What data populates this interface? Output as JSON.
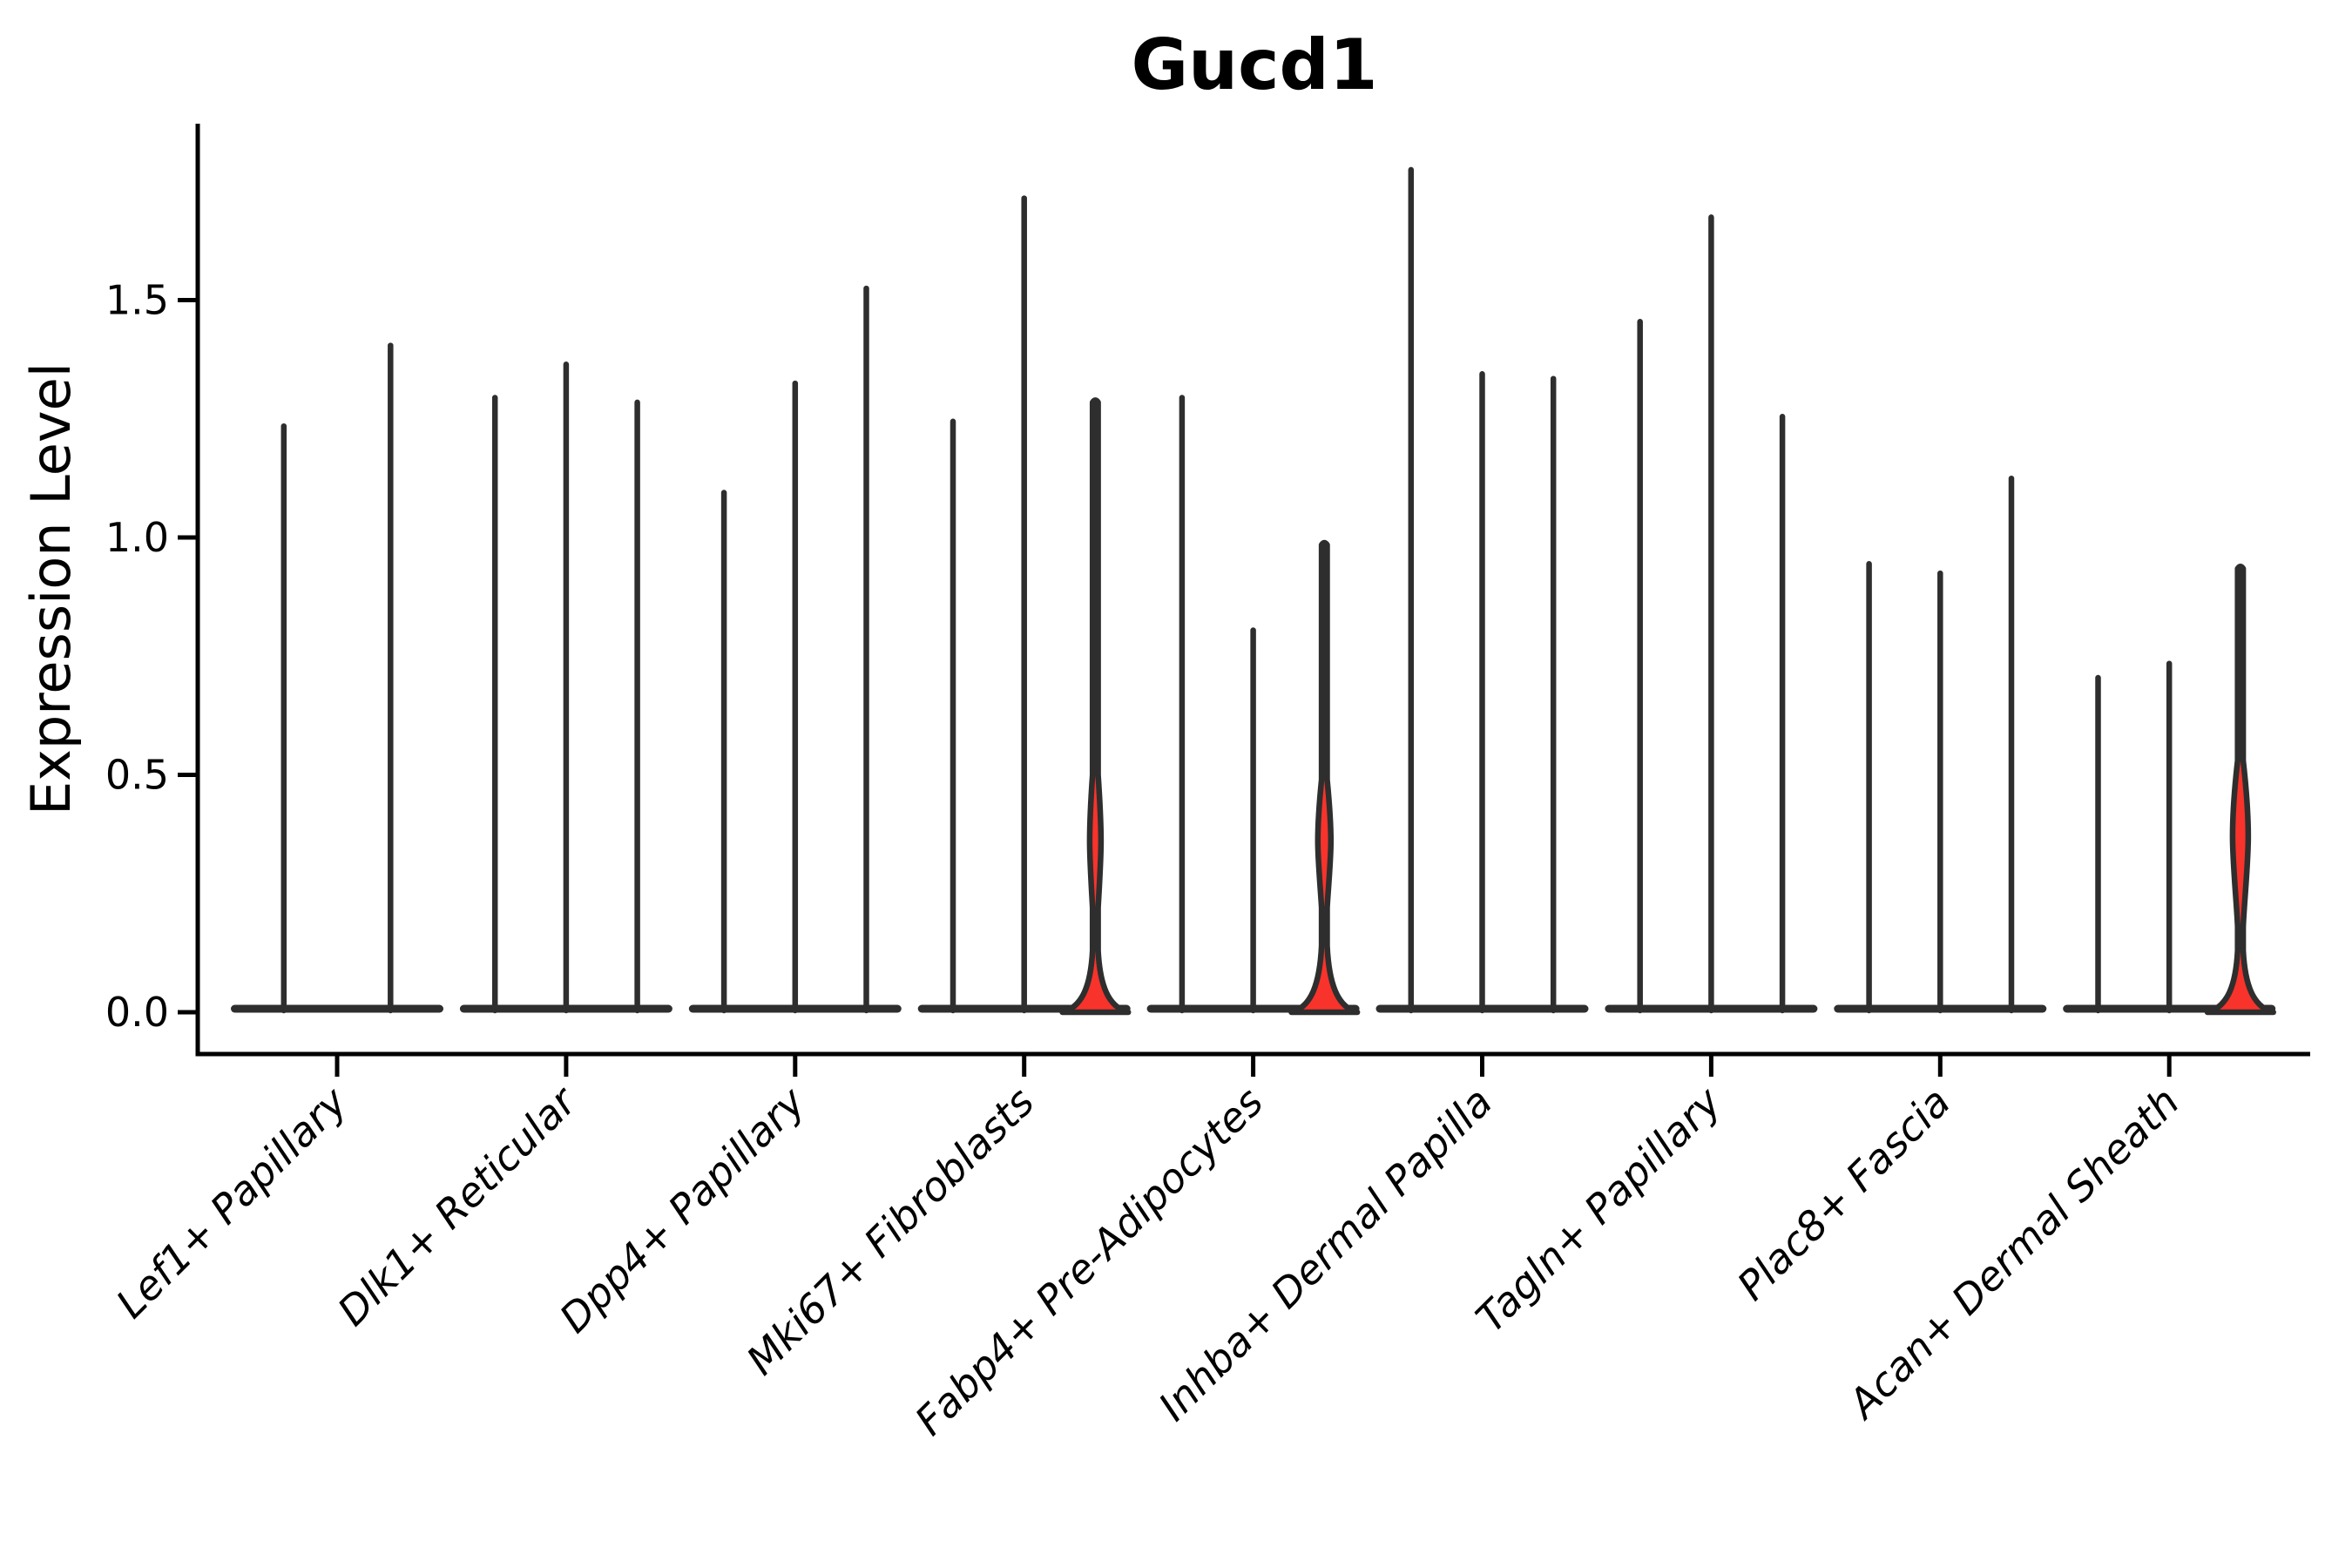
{
  "chart_data": {
    "type": "violin",
    "title": "Gucd1",
    "xlabel": "",
    "ylabel": "Expression Level",
    "ylim": [
      0,
      1.87
    ],
    "yticks": [
      0.0,
      0.5,
      1.0,
      1.5
    ],
    "ytick_labels": [
      "0.0",
      "0.5",
      "1.0",
      "1.5"
    ],
    "grid": false,
    "legend": "none",
    "colors": {
      "violin_fill": "#f8332b",
      "violin_outline": "#2e2e2e",
      "axis": "#000000",
      "text": "#000000",
      "background": "#ffffff"
    },
    "categories": [
      "Lef1+ Papillary",
      "Dlk1+ Reticular",
      "Dpp4+ Papillary",
      "Mki67+ Fibroblasts",
      "Fabp4+ Pre-Adipocytes",
      "Inhba+ Dermal Papilla",
      "Tagln+ Papillary",
      "Plac8+ Fascia",
      "Acan+ Dermal Sheath"
    ],
    "groups": [
      {
        "label": "Lef1+ Papillary",
        "violins": [
          {
            "max": 1.24,
            "filled": false
          },
          {
            "max": 1.41,
            "filled": false
          }
        ]
      },
      {
        "label": "Dlk1+ Reticular",
        "violins": [
          {
            "max": 1.3,
            "filled": false
          },
          {
            "max": 1.37,
            "filled": false
          },
          {
            "max": 1.29,
            "filled": false
          }
        ]
      },
      {
        "label": "Dpp4+ Papillary",
        "violins": [
          {
            "max": 1.1,
            "filled": false
          },
          {
            "max": 1.33,
            "filled": false
          },
          {
            "max": 1.53,
            "filled": false
          }
        ]
      },
      {
        "label": "Mki67+ Fibroblasts",
        "violins": [
          {
            "max": 1.25,
            "filled": false
          },
          {
            "max": 1.72,
            "filled": false
          },
          {
            "max": 1.29,
            "filled": true,
            "bulge": {
              "top": 0.5,
              "peak": 0.36,
              "bottom": 0.22,
              "half_width": 6.5
            },
            "flare_start": 0.13
          }
        ]
      },
      {
        "label": "Fabp4+ Pre-Adipocytes",
        "violins": [
          {
            "max": 1.3,
            "filled": false
          },
          {
            "max": 0.81,
            "filled": false
          },
          {
            "max": 0.99,
            "filled": true,
            "bulge": {
              "top": 0.49,
              "peak": 0.36,
              "bottom": 0.22,
              "half_width": 7.5
            },
            "flare_start": 0.14
          }
        ]
      },
      {
        "label": "Inhba+ Dermal Papilla",
        "violins": [
          {
            "max": 1.78,
            "filled": false
          },
          {
            "max": 1.35,
            "filled": false
          },
          {
            "max": 1.34,
            "filled": false
          }
        ]
      },
      {
        "label": "Tagln+ Papillary",
        "violins": [
          {
            "max": 1.46,
            "filled": false
          },
          {
            "max": 1.68,
            "filled": false
          },
          {
            "max": 1.26,
            "filled": false
          }
        ]
      },
      {
        "label": "Plac8+ Fascia",
        "violins": [
          {
            "max": 0.95,
            "filled": false
          },
          {
            "max": 0.93,
            "filled": false
          },
          {
            "max": 1.13,
            "filled": false
          }
        ]
      },
      {
        "label": "Acan+ Dermal Sheath",
        "violins": [
          {
            "max": 0.71,
            "filled": false
          },
          {
            "max": 0.74,
            "filled": false
          },
          {
            "max": 0.94,
            "filled": true,
            "bulge": {
              "top": 0.53,
              "peak": 0.37,
              "bottom": 0.18,
              "half_width": 9
            },
            "flare_start": 0.13
          }
        ]
      }
    ]
  }
}
